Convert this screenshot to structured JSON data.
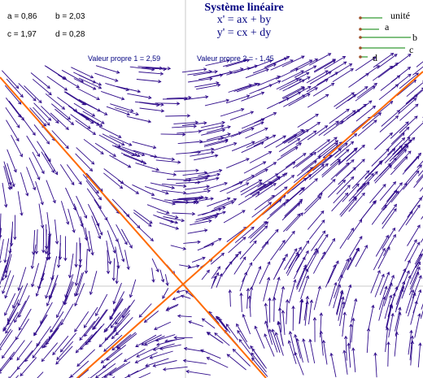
{
  "params": {
    "a": "a = 0,86",
    "b": "b = 2,03",
    "c": "c = 1,97",
    "d": "d = 0,28"
  },
  "title": "Système linéaire",
  "equations": {
    "x": "x' = ax + by",
    "y": "y' = cx + dy"
  },
  "eigenvalues": {
    "first": "Valeur propre 1 =  2,59",
    "second": "Valeur propre 2 =  - 1,45"
  },
  "legend": {
    "unit": "unité",
    "a": "a",
    "b": "b",
    "c": "c",
    "d": "d"
  },
  "colors": {
    "arrows": "#2e0a8a",
    "eigenlines": "#ff6a00",
    "axes": "#c8c8c8",
    "legend_line": "#008000",
    "legend_dot": "#a0522d",
    "text": "#000080"
  },
  "system": {
    "a": 0.86,
    "b": 2.03,
    "c": 1.97,
    "d": 0.28,
    "lambda1": 2.59,
    "lambda2": -1.45
  }
}
